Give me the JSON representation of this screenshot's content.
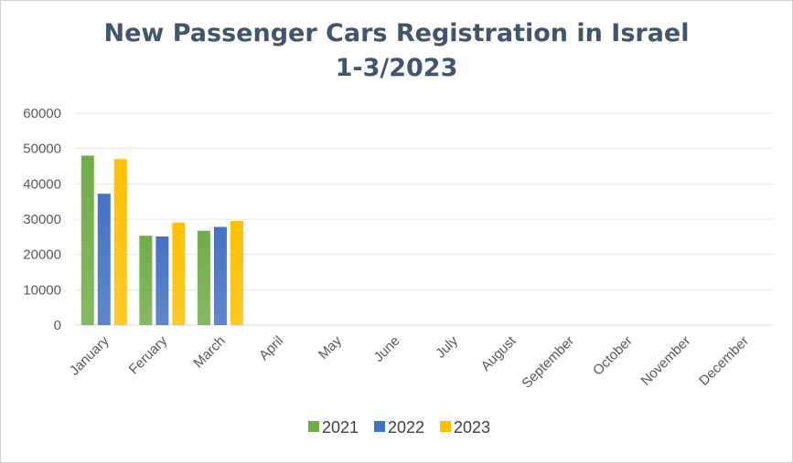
{
  "chart_data": {
    "type": "bar",
    "title_line1": "New Passenger Cars Registration in Israel",
    "title_line2": "1-3/2023",
    "categories": [
      "January",
      "Feruary",
      "March",
      "April",
      "May",
      "June",
      "July",
      "August",
      "September",
      "October",
      "November",
      "December"
    ],
    "series": [
      {
        "name": "2021",
        "values": [
          48000,
          25300,
          26700,
          null,
          null,
          null,
          null,
          null,
          null,
          null,
          null,
          null
        ],
        "color": "#70ad47"
      },
      {
        "name": "2022",
        "values": [
          37200,
          25100,
          27800,
          null,
          null,
          null,
          null,
          null,
          null,
          null,
          null,
          null
        ],
        "color": "#4472c4"
      },
      {
        "name": "2023",
        "values": [
          47000,
          29000,
          29500,
          null,
          null,
          null,
          null,
          null,
          null,
          null,
          null,
          null
        ],
        "color": "#ffc000"
      }
    ],
    "ylim": [
      0,
      60000
    ],
    "yticks": [
      0,
      10000,
      20000,
      30000,
      40000,
      50000,
      60000
    ],
    "grid": true,
    "legend_position": "bottom"
  }
}
